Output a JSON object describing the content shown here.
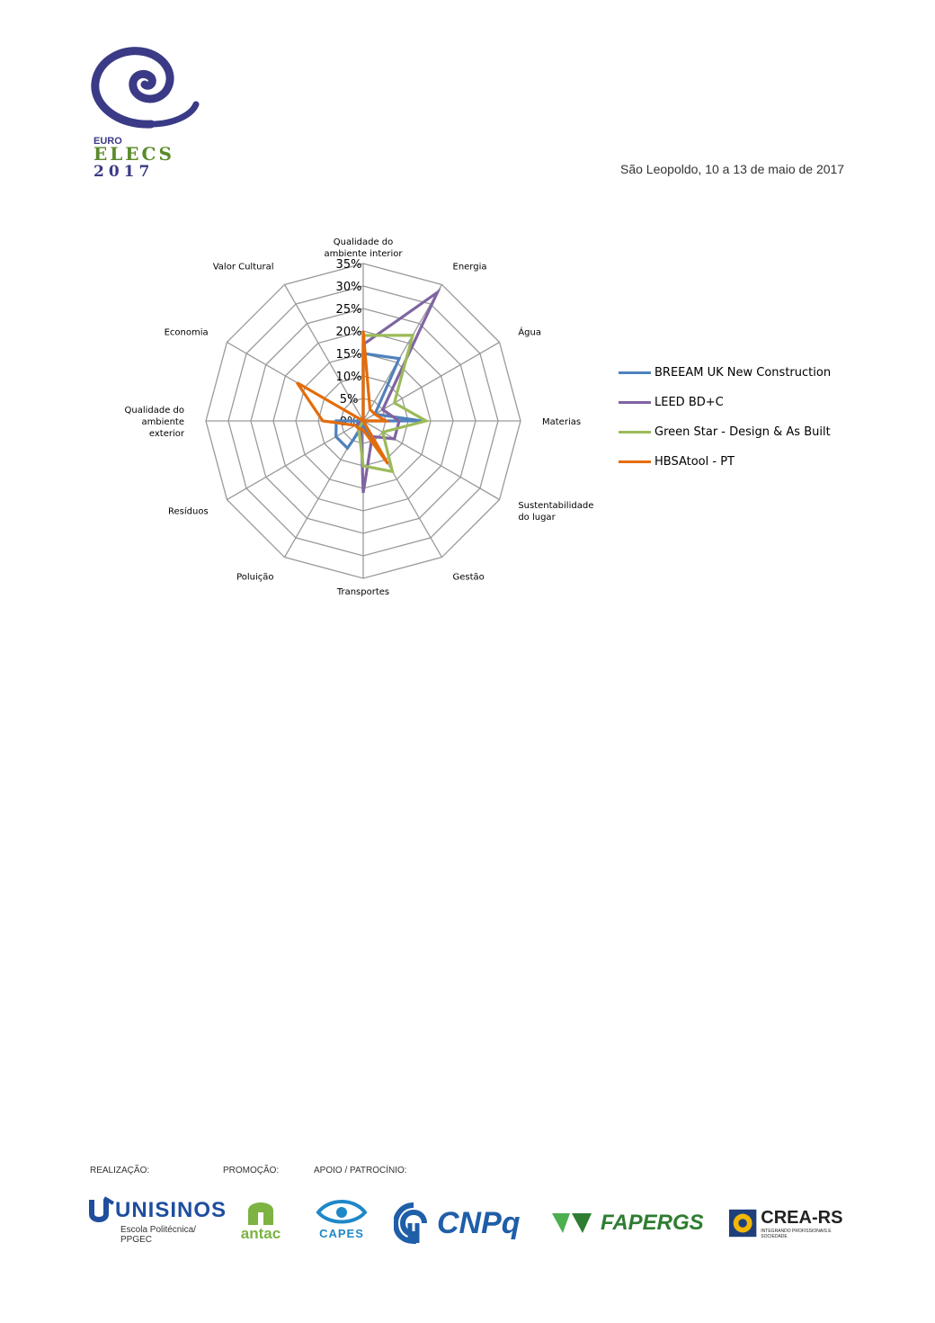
{
  "header": {
    "logo_line1": "EURO",
    "logo_line2": "ELECS",
    "logo_line3": "2017",
    "date": "São Leopoldo, 10 a 13 de maio de 2017"
  },
  "chart_data": {
    "type": "radar",
    "categories": [
      "Qualidade do ambiente interior",
      "Energia",
      "Água",
      "Materiais",
      "Sustentabilidade do lugar",
      "Gestão",
      "Transportes",
      "Poluição",
      "Resíduos",
      "Qualidade do ambiente exterior",
      "Economia",
      "Valor Cultural"
    ],
    "category_labels": [
      [
        "Qualidade do",
        "ambiente interior"
      ],
      [
        "Energia"
      ],
      [
        "Água"
      ],
      [
        "Materias"
      ],
      [
        "Sustentabilidade",
        "do lugar"
      ],
      [
        "Gestão"
      ],
      [
        "Transportes"
      ],
      [
        "Poluição"
      ],
      [
        "Resíduos"
      ],
      [
        "Qualidade do",
        "ambiente",
        "exterior"
      ],
      [
        "Economia"
      ],
      [
        "Valor Cultural"
      ]
    ],
    "rlim": [
      0,
      35
    ],
    "ticks": [
      "0%",
      "5%",
      "10%",
      "15%",
      "20%",
      "25%",
      "30%",
      "35%"
    ],
    "tick_values": [
      0,
      5,
      10,
      15,
      20,
      25,
      30,
      35
    ],
    "grid": true,
    "legend_position": "right",
    "series": [
      {
        "name": "BREEAM UK New Construction",
        "color": "#4f81bd",
        "values": [
          15,
          16,
          3,
          13,
          0,
          8,
          1,
          7,
          7,
          6,
          0,
          0
        ]
      },
      {
        "name": "LEED BD+C",
        "color": "#8064a2",
        "values": [
          17,
          33,
          5,
          8,
          8,
          4,
          16,
          1,
          2,
          0,
          0,
          0
        ]
      },
      {
        "name": "Green Star - Design & As Built",
        "color": "#9bbb59",
        "values": [
          19,
          22,
          8,
          14,
          5,
          13,
          10,
          2,
          0,
          0,
          0,
          0
        ]
      },
      {
        "name": "HBSAtool - PT",
        "color": "#e46c0a",
        "values": [
          20,
          3,
          3,
          5,
          0,
          11,
          2,
          2,
          2,
          9,
          17,
          0
        ]
      }
    ]
  },
  "footer": {
    "realizacao_label": "REALIZAÇÃO:",
    "promocao_label": "PROMOÇÃO:",
    "apoio_label": "APOIO / PATROCÍNIO:",
    "unisinos_name": "UNISINOS",
    "unisinos_sub1": "Escola Politécnica/",
    "unisinos_sub2": "PPGEC",
    "antac_name": "antac",
    "capes_name": "CAPES",
    "cnpq_name": "CNPq",
    "fapergs_name": "FAPERGS",
    "crea_name": "CREA-RS",
    "crea_sub": "INTEGRANDO PROFISSIONAIS E SOCIEDADE"
  }
}
